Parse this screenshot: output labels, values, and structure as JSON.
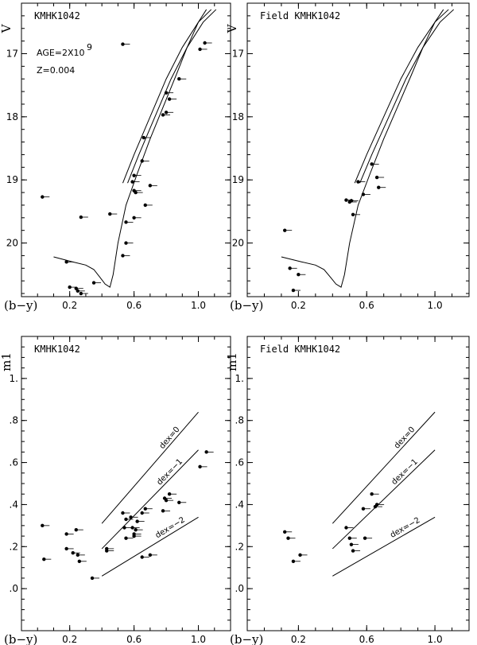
{
  "chart_data": [
    {
      "type": "scatter",
      "title": "KMHK1042",
      "annotations": [
        "AGE=2X10",
        "9",
        "Z=0.004"
      ],
      "xlabel": "(b−y)",
      "ylabel": "V",
      "xlim": [
        -0.1,
        1.2
      ],
      "ylim": [
        20.85,
        16.2
      ],
      "x_ticks": [
        "0.2",
        "0.6",
        "1.0"
      ],
      "y_ticks": [
        "17",
        "18",
        "19",
        "20"
      ],
      "isochrone": {
        "x": [
          0.1,
          0.22,
          0.3,
          0.35,
          0.39,
          0.42,
          0.45,
          0.47,
          0.5,
          0.55,
          0.62,
          0.7,
          0.78,
          0.86,
          0.93,
          1.0,
          1.05
        ],
        "y": [
          20.22,
          20.3,
          20.35,
          20.42,
          20.55,
          20.65,
          20.7,
          20.5,
          20.0,
          19.4,
          18.9,
          18.35,
          17.85,
          17.35,
          16.9,
          16.5,
          16.3
        ]
      },
      "giant_branch": {
        "x": [
          0.53,
          0.6,
          0.7,
          0.8,
          0.9,
          1.0,
          1.08
        ],
        "y": [
          19.05,
          18.6,
          18.0,
          17.4,
          16.9,
          16.5,
          16.3
        ]
      },
      "points": [
        {
          "x": 0.03,
          "y": 19.27
        },
        {
          "x": 0.18,
          "y": 20.3
        },
        {
          "x": 0.27,
          "y": 19.59
        },
        {
          "x": 0.45,
          "y": 19.54
        },
        {
          "x": 0.53,
          "y": 16.85
        },
        {
          "x": 0.55,
          "y": 19.67
        },
        {
          "x": 0.55,
          "y": 20.0
        },
        {
          "x": 0.53,
          "y": 20.2
        },
        {
          "x": 0.6,
          "y": 18.93
        },
        {
          "x": 0.59,
          "y": 19.03
        },
        {
          "x": 0.6,
          "y": 19.17
        },
        {
          "x": 0.61,
          "y": 19.2
        },
        {
          "x": 0.6,
          "y": 19.6
        },
        {
          "x": 0.65,
          "y": 18.7
        },
        {
          "x": 0.66,
          "y": 18.33
        },
        {
          "x": 0.67,
          "y": 19.4
        },
        {
          "x": 0.7,
          "y": 19.09
        },
        {
          "x": 0.78,
          "y": 17.97
        },
        {
          "x": 0.8,
          "y": 17.62
        },
        {
          "x": 0.8,
          "y": 17.93
        },
        {
          "x": 0.82,
          "y": 17.72
        },
        {
          "x": 0.88,
          "y": 17.4
        },
        {
          "x": 1.01,
          "y": 16.93
        },
        {
          "x": 1.04,
          "y": 16.83
        },
        {
          "x": 0.2,
          "y": 20.7
        },
        {
          "x": 0.24,
          "y": 20.72
        },
        {
          "x": 0.25,
          "y": 20.76
        },
        {
          "x": 0.27,
          "y": 20.8
        },
        {
          "x": 0.35,
          "y": 20.63
        }
      ]
    },
    {
      "type": "scatter",
      "title": "Field KMHK1042",
      "xlabel": "(b−y)",
      "ylabel": "V",
      "xlim": [
        -0.1,
        1.2
      ],
      "ylim": [
        20.85,
        16.2
      ],
      "x_ticks": [
        "0.2",
        "0.6",
        "1.0"
      ],
      "y_ticks": [
        "17",
        "18",
        "19",
        "20"
      ],
      "isochrone": {
        "x": [
          0.1,
          0.22,
          0.3,
          0.35,
          0.39,
          0.42,
          0.45,
          0.47,
          0.5,
          0.55,
          0.62,
          0.7,
          0.78,
          0.86,
          0.93,
          1.0,
          1.05
        ],
        "y": [
          20.22,
          20.3,
          20.35,
          20.42,
          20.55,
          20.65,
          20.7,
          20.5,
          20.0,
          19.4,
          18.9,
          18.35,
          17.85,
          17.35,
          16.9,
          16.5,
          16.3
        ]
      },
      "giant_branch": {
        "x": [
          0.53,
          0.6,
          0.7,
          0.8,
          0.9,
          1.0,
          1.08
        ],
        "y": [
          19.05,
          18.6,
          18.0,
          17.4,
          16.9,
          16.5,
          16.3
        ]
      },
      "points": [
        {
          "x": 0.12,
          "y": 19.8
        },
        {
          "x": 0.15,
          "y": 20.4
        },
        {
          "x": 0.2,
          "y": 20.5
        },
        {
          "x": 0.17,
          "y": 20.75
        },
        {
          "x": 0.48,
          "y": 19.32
        },
        {
          "x": 0.5,
          "y": 19.35
        },
        {
          "x": 0.51,
          "y": 19.33
        },
        {
          "x": 0.52,
          "y": 19.55
        },
        {
          "x": 0.55,
          "y": 19.03
        },
        {
          "x": 0.58,
          "y": 19.23
        },
        {
          "x": 0.63,
          "y": 18.75
        },
        {
          "x": 0.66,
          "y": 18.96
        },
        {
          "x": 0.67,
          "y": 19.12
        }
      ]
    },
    {
      "type": "scatter",
      "title": "KMHK1042",
      "xlabel": "(b−y)",
      "ylabel": "m1",
      "xlim": [
        -0.1,
        1.2
      ],
      "ylim": [
        -0.2,
        1.2
      ],
      "x_ticks": [
        "0.2",
        "0.6",
        "1.0"
      ],
      "y_ticks": [
        "1.",
        ".8",
        ".6",
        ".4",
        ".2",
        ".0"
      ],
      "dex_lines": [
        {
          "label": "dex=0",
          "x": [
            0.4,
            1.0
          ],
          "y": [
            0.31,
            0.84
          ]
        },
        {
          "label": "dex=−1",
          "x": [
            0.4,
            1.0
          ],
          "y": [
            0.19,
            0.66
          ]
        },
        {
          "label": "dex=−2",
          "x": [
            0.4,
            1.0
          ],
          "y": [
            0.06,
            0.34
          ]
        }
      ],
      "points": [
        {
          "x": 0.03,
          "y": 0.3
        },
        {
          "x": 0.04,
          "y": 0.14
        },
        {
          "x": 0.18,
          "y": 0.26
        },
        {
          "x": 0.18,
          "y": 0.19
        },
        {
          "x": 0.22,
          "y": 0.17
        },
        {
          "x": 0.24,
          "y": 0.28
        },
        {
          "x": 0.25,
          "y": 0.16
        },
        {
          "x": 0.26,
          "y": 0.13
        },
        {
          "x": 0.34,
          "y": 0.05
        },
        {
          "x": 0.43,
          "y": 0.19
        },
        {
          "x": 0.43,
          "y": 0.18
        },
        {
          "x": 0.53,
          "y": 0.36
        },
        {
          "x": 0.54,
          "y": 0.29
        },
        {
          "x": 0.55,
          "y": 0.33
        },
        {
          "x": 0.55,
          "y": 0.24
        },
        {
          "x": 0.58,
          "y": 0.34
        },
        {
          "x": 0.59,
          "y": 0.29
        },
        {
          "x": 0.6,
          "y": 0.26
        },
        {
          "x": 0.6,
          "y": 0.25
        },
        {
          "x": 0.61,
          "y": 0.28
        },
        {
          "x": 0.62,
          "y": 0.32
        },
        {
          "x": 0.65,
          "y": 0.36
        },
        {
          "x": 0.67,
          "y": 0.38
        },
        {
          "x": 0.65,
          "y": 0.15
        },
        {
          "x": 0.7,
          "y": 0.16
        },
        {
          "x": 0.78,
          "y": 0.37
        },
        {
          "x": 0.79,
          "y": 0.43
        },
        {
          "x": 0.8,
          "y": 0.42
        },
        {
          "x": 0.82,
          "y": 0.45
        },
        {
          "x": 0.88,
          "y": 0.41
        },
        {
          "x": 1.01,
          "y": 0.58
        },
        {
          "x": 1.05,
          "y": 0.65
        }
      ]
    },
    {
      "type": "scatter",
      "title": "Field KMHK1042",
      "xlabel": "(b−y)",
      "ylabel": "m1",
      "xlim": [
        -0.1,
        1.2
      ],
      "ylim": [
        -0.2,
        1.2
      ],
      "x_ticks": [
        "0.2",
        "0.6",
        "1.0"
      ],
      "y_ticks": [
        "1.",
        ".8",
        ".6",
        ".4",
        ".2",
        ".0"
      ],
      "dex_lines": [
        {
          "label": "dex=0",
          "x": [
            0.4,
            1.0
          ],
          "y": [
            0.31,
            0.84
          ]
        },
        {
          "label": "dex=−1",
          "x": [
            0.4,
            1.0
          ],
          "y": [
            0.19,
            0.66
          ]
        },
        {
          "label": "dex=−2",
          "x": [
            0.4,
            1.0
          ],
          "y": [
            0.06,
            0.34
          ]
        }
      ],
      "points": [
        {
          "x": 0.12,
          "y": 0.27
        },
        {
          "x": 0.14,
          "y": 0.24
        },
        {
          "x": 0.17,
          "y": 0.13
        },
        {
          "x": 0.21,
          "y": 0.16
        },
        {
          "x": 0.48,
          "y": 0.29
        },
        {
          "x": 0.5,
          "y": 0.24
        },
        {
          "x": 0.51,
          "y": 0.21
        },
        {
          "x": 0.52,
          "y": 0.18
        },
        {
          "x": 0.58,
          "y": 0.38
        },
        {
          "x": 0.59,
          "y": 0.24
        },
        {
          "x": 0.63,
          "y": 0.45
        },
        {
          "x": 0.65,
          "y": 0.39
        },
        {
          "x": 0.66,
          "y": 0.4
        }
      ]
    }
  ]
}
